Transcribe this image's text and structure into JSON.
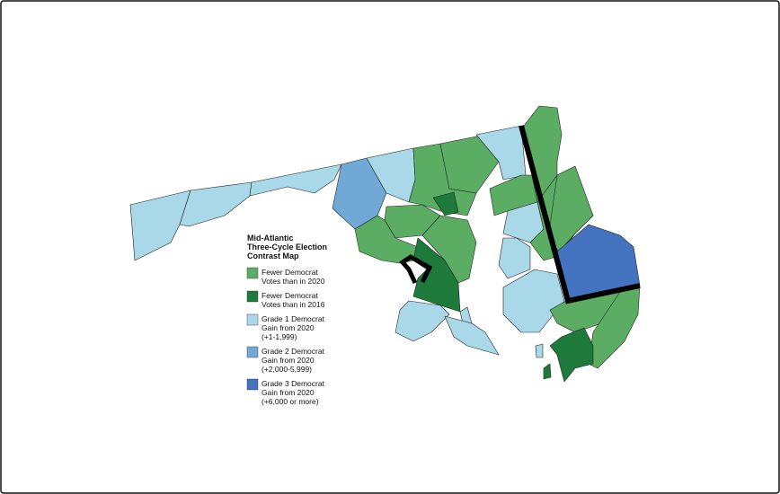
{
  "title_lines": [
    "Mid-Atlantic",
    "Three-Cycle Election",
    "Contrast Map"
  ],
  "legend": [
    {
      "color": "#5aad62",
      "lines": [
        "Fewer Democrat",
        "Votes than in 2020"
      ]
    },
    {
      "color": "#1e7a3a",
      "lines": [
        "Fewer Democrat",
        "Votes than in 2016"
      ]
    },
    {
      "color": "#a9d8e8",
      "lines": [
        "Grade 1 Democrat",
        "Gain from 2020",
        "(+1-1,999)"
      ]
    },
    {
      "color": "#70a9d5",
      "lines": [
        "Grade 2 Democrat",
        "Gain from 2020",
        "(+2,000-5,999)"
      ]
    },
    {
      "color": "#4474bf",
      "lines": [
        "Grade 3 Democrat",
        "Gain from 2020",
        "(+6,000 or more)"
      ]
    }
  ]
}
